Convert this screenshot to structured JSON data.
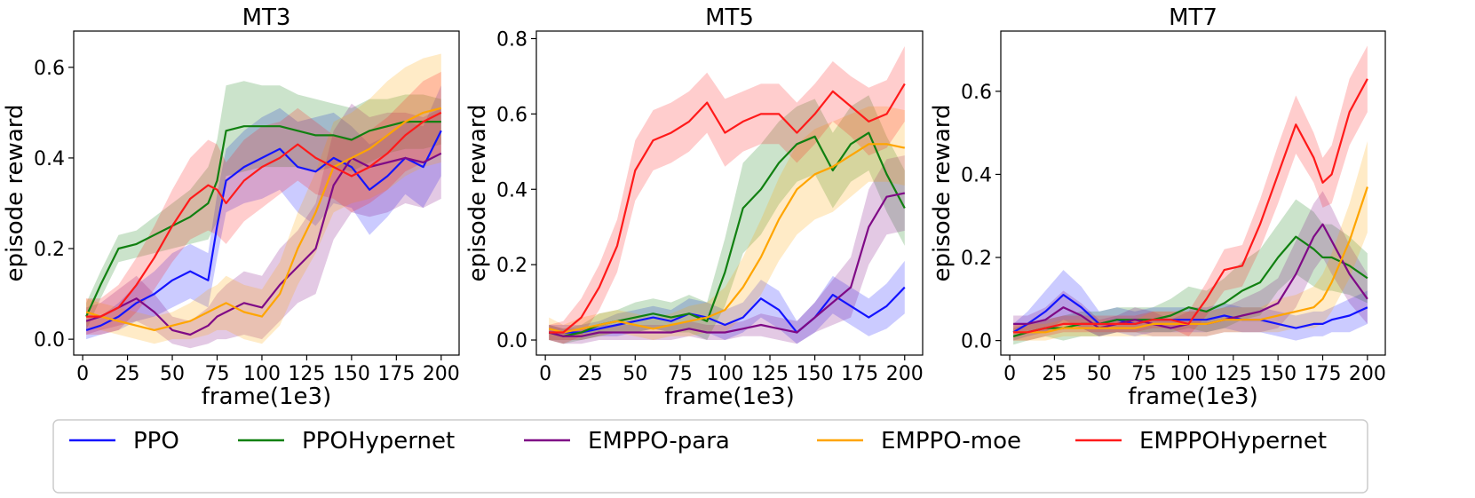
{
  "legend": {
    "entries": [
      {
        "name": "PPO",
        "color": "#1414ff"
      },
      {
        "name": "PPOHypernet",
        "color": "#118011"
      },
      {
        "name": "EMPPO-para",
        "color": "#7f0a86"
      },
      {
        "name": "EMPPO-moe",
        "color": "#ffa500"
      },
      {
        "name": "EMPPOHypernet",
        "color": "#ff1a1a"
      }
    ]
  },
  "chart_data": [
    {
      "type": "line",
      "title": "MT3",
      "xlabel": "frame(1e3)",
      "ylabel": "episode reward",
      "xlim": [
        -5,
        210
      ],
      "ylim": [
        -0.035,
        0.68
      ],
      "xticks": [
        0,
        25,
        50,
        75,
        100,
        125,
        150,
        175,
        200
      ],
      "yticks": [
        0.0,
        0.2,
        0.4,
        0.6
      ],
      "yticklabels": [
        "0.0",
        "0.2",
        "0.4",
        "0.6"
      ],
      "x": [
        2,
        10,
        20,
        30,
        40,
        50,
        60,
        70,
        75,
        80,
        90,
        100,
        110,
        120,
        130,
        140,
        150,
        160,
        170,
        180,
        190,
        200
      ],
      "series": [
        {
          "name": "PPO",
          "color": "#1414ff",
          "values": [
            0.02,
            0.03,
            0.05,
            0.08,
            0.1,
            0.13,
            0.15,
            0.13,
            0.25,
            0.35,
            0.38,
            0.4,
            0.42,
            0.38,
            0.37,
            0.4,
            0.38,
            0.33,
            0.36,
            0.4,
            0.38,
            0.46
          ],
          "spread": [
            0.02,
            0.02,
            0.03,
            0.04,
            0.05,
            0.06,
            0.06,
            0.06,
            0.07,
            0.07,
            0.08,
            0.09,
            0.09,
            0.1,
            0.12,
            0.1,
            0.09,
            0.1,
            0.09,
            0.08,
            0.09,
            0.1
          ]
        },
        {
          "name": "PPOHypernet",
          "color": "#118011",
          "values": [
            0.05,
            0.12,
            0.2,
            0.21,
            0.23,
            0.25,
            0.27,
            0.3,
            0.35,
            0.46,
            0.47,
            0.47,
            0.47,
            0.46,
            0.45,
            0.45,
            0.44,
            0.46,
            0.47,
            0.48,
            0.48,
            0.48
          ],
          "spread": [
            0.03,
            0.03,
            0.03,
            0.03,
            0.04,
            0.05,
            0.06,
            0.08,
            0.09,
            0.1,
            0.1,
            0.09,
            0.09,
            0.08,
            0.08,
            0.07,
            0.07,
            0.07,
            0.06,
            0.06,
            0.06,
            0.05
          ]
        },
        {
          "name": "EMPPO-para",
          "color": "#7f0a86",
          "values": [
            0.04,
            0.05,
            0.07,
            0.09,
            0.06,
            0.02,
            0.01,
            0.03,
            0.05,
            0.06,
            0.08,
            0.07,
            0.12,
            0.16,
            0.2,
            0.34,
            0.4,
            0.38,
            0.39,
            0.4,
            0.39,
            0.41
          ],
          "spread": [
            0.03,
            0.03,
            0.04,
            0.05,
            0.04,
            0.03,
            0.03,
            0.04,
            0.05,
            0.06,
            0.07,
            0.07,
            0.08,
            0.08,
            0.1,
            0.12,
            0.12,
            0.11,
            0.11,
            0.1,
            0.1,
            0.1
          ]
        },
        {
          "name": "EMPPO-moe",
          "color": "#ffa500",
          "values": [
            0.06,
            0.05,
            0.04,
            0.03,
            0.02,
            0.03,
            0.04,
            0.06,
            0.07,
            0.08,
            0.06,
            0.05,
            0.1,
            0.2,
            0.28,
            0.38,
            0.4,
            0.42,
            0.45,
            0.48,
            0.5,
            0.51
          ],
          "spread": [
            0.03,
            0.03,
            0.03,
            0.03,
            0.03,
            0.03,
            0.04,
            0.05,
            0.05,
            0.06,
            0.06,
            0.06,
            0.07,
            0.08,
            0.09,
            0.1,
            0.1,
            0.11,
            0.12,
            0.12,
            0.12,
            0.12
          ]
        },
        {
          "name": "EMPPOHypernet",
          "color": "#ff1a1a",
          "values": [
            0.05,
            0.05,
            0.07,
            0.12,
            0.18,
            0.25,
            0.31,
            0.34,
            0.33,
            0.3,
            0.35,
            0.38,
            0.4,
            0.43,
            0.4,
            0.38,
            0.36,
            0.38,
            0.41,
            0.45,
            0.48,
            0.5
          ],
          "spread": [
            0.04,
            0.04,
            0.05,
            0.06,
            0.07,
            0.08,
            0.09,
            0.1,
            0.1,
            0.09,
            0.09,
            0.09,
            0.08,
            0.08,
            0.08,
            0.07,
            0.08,
            0.08,
            0.08,
            0.08,
            0.09,
            0.09
          ]
        }
      ]
    },
    {
      "type": "line",
      "title": "MT5",
      "xlabel": "frame(1e3)",
      "ylabel": "episode reward",
      "xlim": [
        -5,
        210
      ],
      "ylim": [
        -0.04,
        0.82
      ],
      "xticks": [
        0,
        25,
        50,
        75,
        100,
        125,
        150,
        175,
        200
      ],
      "yticks": [
        0.0,
        0.2,
        0.4,
        0.6,
        0.8
      ],
      "yticklabels": [
        "0.0",
        "0.2",
        "0.4",
        "0.6",
        "0.8"
      ],
      "x": [
        2,
        10,
        20,
        30,
        40,
        50,
        60,
        70,
        80,
        90,
        100,
        110,
        120,
        130,
        140,
        150,
        160,
        170,
        180,
        190,
        200
      ],
      "series": [
        {
          "name": "PPO",
          "color": "#1414ff",
          "values": [
            0.02,
            0.02,
            0.02,
            0.03,
            0.04,
            0.05,
            0.06,
            0.05,
            0.07,
            0.06,
            0.04,
            0.06,
            0.11,
            0.08,
            0.02,
            0.06,
            0.12,
            0.09,
            0.06,
            0.09,
            0.14
          ],
          "spread": [
            0.02,
            0.02,
            0.02,
            0.02,
            0.03,
            0.03,
            0.03,
            0.03,
            0.04,
            0.04,
            0.04,
            0.04,
            0.05,
            0.05,
            0.03,
            0.04,
            0.05,
            0.05,
            0.05,
            0.06,
            0.07
          ]
        },
        {
          "name": "PPOHypernet",
          "color": "#118011",
          "values": [
            0.02,
            0.01,
            0.02,
            0.04,
            0.05,
            0.06,
            0.07,
            0.06,
            0.07,
            0.05,
            0.18,
            0.35,
            0.4,
            0.47,
            0.52,
            0.54,
            0.45,
            0.52,
            0.55,
            0.44,
            0.35
          ],
          "spread": [
            0.02,
            0.02,
            0.02,
            0.03,
            0.03,
            0.04,
            0.04,
            0.04,
            0.05,
            0.05,
            0.09,
            0.12,
            0.12,
            0.11,
            0.1,
            0.1,
            0.1,
            0.1,
            0.1,
            0.1,
            0.1
          ]
        },
        {
          "name": "EMPPO-para",
          "color": "#7f0a86",
          "values": [
            0.02,
            0.01,
            0.01,
            0.02,
            0.02,
            0.02,
            0.02,
            0.02,
            0.03,
            0.02,
            0.02,
            0.03,
            0.04,
            0.03,
            0.02,
            0.06,
            0.1,
            0.14,
            0.3,
            0.38,
            0.39
          ],
          "spread": [
            0.02,
            0.02,
            0.02,
            0.02,
            0.02,
            0.02,
            0.02,
            0.02,
            0.02,
            0.02,
            0.02,
            0.02,
            0.03,
            0.03,
            0.03,
            0.04,
            0.06,
            0.08,
            0.1,
            0.1,
            0.1
          ]
        },
        {
          "name": "EMPPO-moe",
          "color": "#ffa500",
          "values": [
            0.03,
            0.02,
            0.03,
            0.04,
            0.05,
            0.04,
            0.03,
            0.04,
            0.05,
            0.06,
            0.08,
            0.14,
            0.22,
            0.32,
            0.4,
            0.44,
            0.46,
            0.49,
            0.52,
            0.52,
            0.51
          ],
          "spread": [
            0.03,
            0.02,
            0.03,
            0.03,
            0.03,
            0.03,
            0.03,
            0.03,
            0.04,
            0.04,
            0.06,
            0.08,
            0.1,
            0.11,
            0.12,
            0.12,
            0.12,
            0.11,
            0.1,
            0.1,
            0.1
          ]
        },
        {
          "name": "EMPPOHypernet",
          "color": "#ff1a1a",
          "values": [
            0.02,
            0.02,
            0.06,
            0.14,
            0.25,
            0.45,
            0.53,
            0.55,
            0.58,
            0.63,
            0.55,
            0.58,
            0.6,
            0.6,
            0.55,
            0.6,
            0.66,
            0.62,
            0.58,
            0.6,
            0.68
          ],
          "spread": [
            0.02,
            0.03,
            0.05,
            0.06,
            0.07,
            0.08,
            0.08,
            0.08,
            0.08,
            0.08,
            0.09,
            0.08,
            0.08,
            0.08,
            0.08,
            0.08,
            0.08,
            0.08,
            0.09,
            0.09,
            0.1
          ]
        }
      ]
    },
    {
      "type": "line",
      "title": "MT7",
      "xlabel": "frame(1e3)",
      "ylabel": "episode reward",
      "xlim": [
        -5,
        210
      ],
      "ylim": [
        -0.035,
        0.745
      ],
      "xticks": [
        0,
        25,
        50,
        75,
        100,
        125,
        150,
        175,
        200
      ],
      "yticks": [
        0.0,
        0.2,
        0.4,
        0.6
      ],
      "yticklabels": [
        "0.0",
        "0.2",
        "0.4",
        "0.6"
      ],
      "x": [
        2,
        10,
        20,
        30,
        40,
        50,
        60,
        70,
        80,
        90,
        100,
        110,
        120,
        130,
        140,
        150,
        160,
        170,
        175,
        180,
        190,
        200
      ],
      "series": [
        {
          "name": "PPO",
          "color": "#1414ff",
          "values": [
            0.02,
            0.04,
            0.07,
            0.11,
            0.08,
            0.04,
            0.05,
            0.04,
            0.05,
            0.05,
            0.05,
            0.05,
            0.06,
            0.05,
            0.05,
            0.04,
            0.03,
            0.04,
            0.04,
            0.05,
            0.06,
            0.08
          ],
          "spread": [
            0.02,
            0.03,
            0.05,
            0.06,
            0.05,
            0.03,
            0.03,
            0.03,
            0.03,
            0.03,
            0.03,
            0.03,
            0.03,
            0.03,
            0.03,
            0.03,
            0.03,
            0.03,
            0.03,
            0.03,
            0.04,
            0.04
          ]
        },
        {
          "name": "PPOHypernet",
          "color": "#118011",
          "values": [
            0.01,
            0.02,
            0.03,
            0.03,
            0.04,
            0.04,
            0.05,
            0.05,
            0.05,
            0.06,
            0.08,
            0.07,
            0.09,
            0.12,
            0.14,
            0.2,
            0.25,
            0.22,
            0.2,
            0.2,
            0.18,
            0.15
          ],
          "spread": [
            0.02,
            0.02,
            0.02,
            0.03,
            0.03,
            0.03,
            0.03,
            0.03,
            0.03,
            0.04,
            0.05,
            0.05,
            0.06,
            0.07,
            0.08,
            0.08,
            0.09,
            0.09,
            0.08,
            0.08,
            0.07,
            0.06
          ]
        },
        {
          "name": "EMPPO-para",
          "color": "#7f0a86",
          "values": [
            0.04,
            0.04,
            0.05,
            0.08,
            0.06,
            0.03,
            0.04,
            0.05,
            0.04,
            0.03,
            0.04,
            0.04,
            0.05,
            0.06,
            0.07,
            0.09,
            0.16,
            0.25,
            0.28,
            0.24,
            0.16,
            0.1
          ],
          "spread": [
            0.02,
            0.02,
            0.03,
            0.04,
            0.03,
            0.02,
            0.02,
            0.03,
            0.03,
            0.02,
            0.03,
            0.03,
            0.03,
            0.04,
            0.05,
            0.06,
            0.08,
            0.08,
            0.08,
            0.08,
            0.07,
            0.06
          ]
        },
        {
          "name": "EMPPO-moe",
          "color": "#ffa500",
          "values": [
            0.02,
            0.02,
            0.02,
            0.03,
            0.03,
            0.03,
            0.03,
            0.03,
            0.04,
            0.04,
            0.04,
            0.04,
            0.05,
            0.05,
            0.05,
            0.06,
            0.07,
            0.08,
            0.1,
            0.14,
            0.24,
            0.37
          ],
          "spread": [
            0.02,
            0.02,
            0.02,
            0.02,
            0.02,
            0.02,
            0.02,
            0.02,
            0.03,
            0.03,
            0.03,
            0.03,
            0.03,
            0.03,
            0.03,
            0.04,
            0.04,
            0.05,
            0.06,
            0.07,
            0.09,
            0.11
          ]
        },
        {
          "name": "EMPPOHypernet",
          "color": "#ff1a1a",
          "values": [
            0.02,
            0.02,
            0.03,
            0.04,
            0.04,
            0.04,
            0.04,
            0.04,
            0.05,
            0.05,
            0.04,
            0.1,
            0.17,
            0.18,
            0.28,
            0.4,
            0.52,
            0.44,
            0.38,
            0.4,
            0.55,
            0.63
          ],
          "spread": [
            0.02,
            0.02,
            0.02,
            0.02,
            0.02,
            0.02,
            0.02,
            0.02,
            0.02,
            0.02,
            0.03,
            0.04,
            0.05,
            0.05,
            0.06,
            0.07,
            0.07,
            0.06,
            0.06,
            0.07,
            0.08,
            0.08
          ]
        }
      ]
    }
  ]
}
